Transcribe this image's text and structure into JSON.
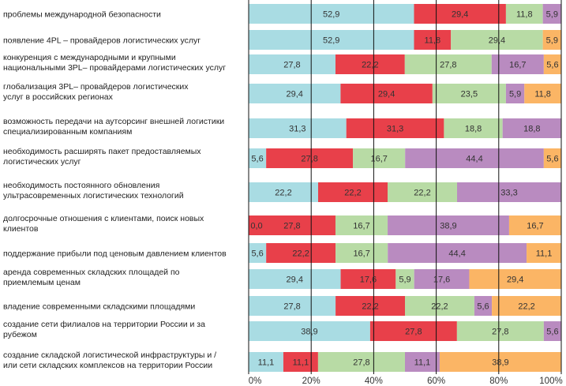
{
  "chart_data": {
    "type": "bar",
    "orientation": "horizontal",
    "stacked": "percent",
    "title": "",
    "xlabel": "",
    "ylabel": "",
    "xlim": [
      0,
      100
    ],
    "grid": true,
    "legend": "none",
    "x_ticks": [
      "0%",
      "20%",
      "40%",
      "60%",
      "80%",
      "100%"
    ],
    "colors": [
      "#A9DCE3",
      "#E8404A",
      "#B8DBA5",
      "#B98BC0",
      "#FBB565"
    ],
    "categories": [
      [
        "проблемы международной безопасности"
      ],
      [
        "появление 4PL – провайдеров логистических услуг"
      ],
      [
        "конкуренция с международными и крупными",
        "национальными 3PL– провайдерами логистических услуг"
      ],
      [
        "глобализация 3PL– провайдеров логистических",
        "услуг в российских регионах"
      ],
      [
        "возможность передачи на аутсорсинг внешней логистики",
        "специализированным компаниям"
      ],
      [
        "необходимость расширять пакет предоставляемых",
        "логистических услуг"
      ],
      [
        "необходимость постоянного обновления",
        "ультрасовременных логистических технологий"
      ],
      [
        "долгосрочные отношения с клиентами,  поиск новых",
        "клиентов"
      ],
      [
        "поддержание прибыли под ценовым давлением клиентов"
      ],
      [
        "аренда современных складских площадей по",
        "приемлемым ценам"
      ],
      [
        "владение современными складскими площадями"
      ],
      [
        "создание сети филиалов на территории России и за",
        "рубежом"
      ],
      [
        "создание складской логистической инфраструктуры и /",
        "или сети складских комплексов на территории России"
      ]
    ],
    "series": [
      {
        "name": "series-1",
        "color": "#A9DCE3",
        "values": [
          52.9,
          52.9,
          27.8,
          29.4,
          31.3,
          5.6,
          22.2,
          0.0,
          5.6,
          29.4,
          27.8,
          38.9,
          11.1
        ],
        "labels": [
          "52,9",
          "52,9",
          "27,8",
          "29,4",
          "31,3",
          "5,6",
          "22,2",
          "0,0",
          "5,6",
          "29,4",
          "27,8",
          "38,9",
          "11,1"
        ]
      },
      {
        "name": "series-2",
        "color": "#E8404A",
        "values": [
          29.4,
          11.8,
          22.2,
          29.4,
          31.3,
          27.8,
          22.2,
          27.8,
          22.2,
          17.6,
          22.2,
          27.8,
          11.1
        ],
        "labels": [
          "29,4",
          "11,8",
          "22,2",
          "29,4",
          "31,3",
          "27,8",
          "22,2",
          "27,8",
          "22,2",
          "17,6",
          "22,2",
          "27,8",
          "11,1"
        ]
      },
      {
        "name": "series-3",
        "color": "#B8DBA5",
        "values": [
          11.8,
          29.4,
          27.8,
          23.5,
          18.8,
          16.7,
          22.2,
          16.7,
          16.7,
          5.9,
          22.2,
          27.8,
          27.8
        ],
        "labels": [
          "11,8",
          "29,4",
          "27,8",
          "23,5",
          "18,8",
          "16,7",
          "22,2",
          "16,7",
          "16,7",
          "5,9",
          "22,2",
          "27,8",
          "27,8"
        ]
      },
      {
        "name": "series-4",
        "color": "#B98BC0",
        "values": [
          5.9,
          0,
          16.7,
          5.9,
          18.8,
          44.4,
          33.3,
          38.9,
          44.4,
          17.6,
          5.6,
          5.6,
          11.1
        ],
        "labels": [
          "5,9",
          "",
          "16,7",
          "5,9",
          "18,8",
          "44,4",
          "33,3",
          "38,9",
          "44,4",
          "17,6",
          "5,6",
          "5,6",
          "11,1"
        ]
      },
      {
        "name": "series-5",
        "color": "#FBB565",
        "values": [
          0,
          5.9,
          5.6,
          11.8,
          0,
          5.6,
          0,
          16.7,
          11.1,
          29.4,
          22.2,
          0,
          38.9
        ],
        "labels": [
          "",
          "5,9",
          "5,6",
          "11,8",
          "",
          "5,6",
          "",
          "16,7",
          "11,1",
          "29,4",
          "22,2",
          "",
          "38,9"
        ]
      }
    ]
  }
}
